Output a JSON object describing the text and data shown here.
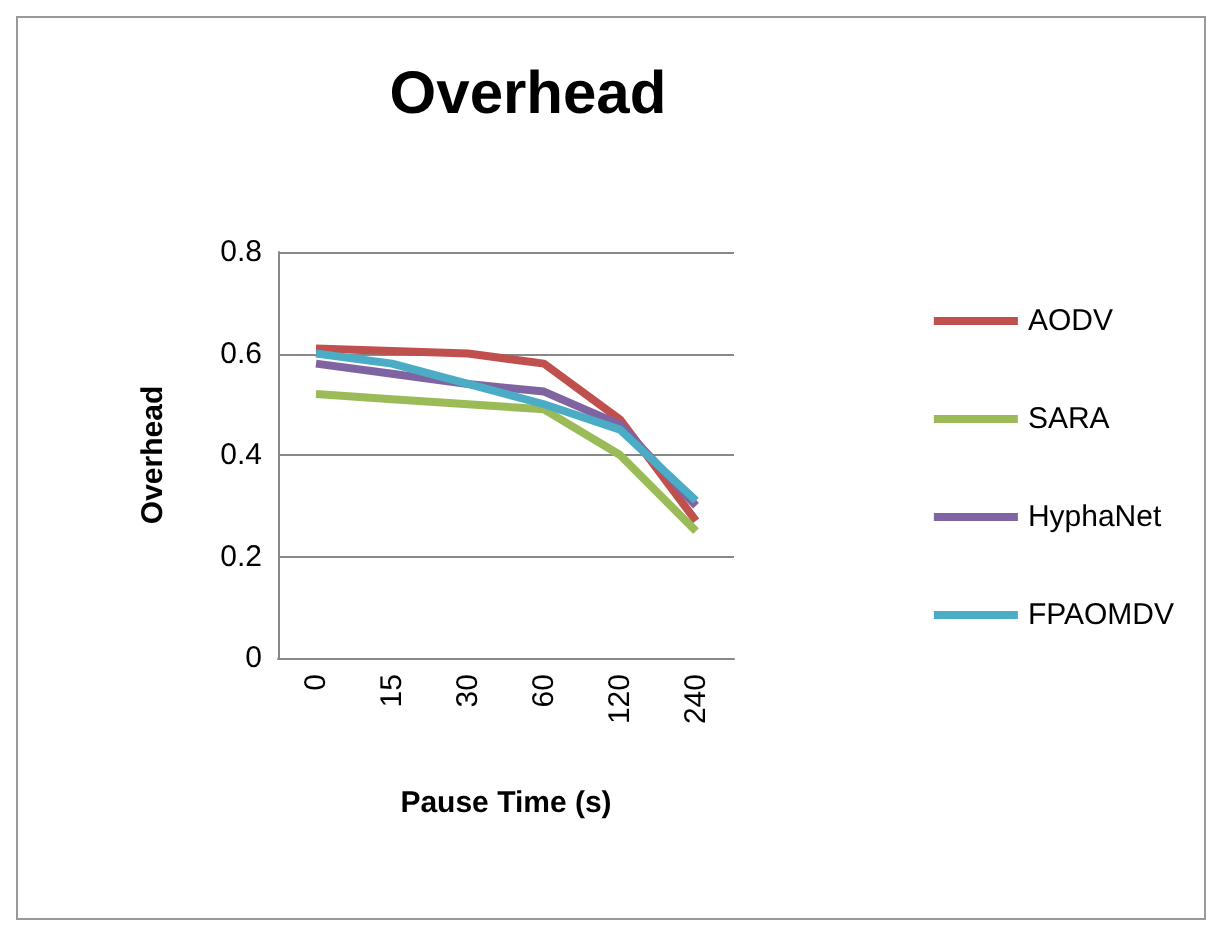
{
  "chart_data": {
    "type": "line",
    "title": "Overhead",
    "xlabel": "Pause Time (s)",
    "ylabel": "Overhead",
    "categories": [
      "0",
      "15",
      "30",
      "60",
      "120",
      "240"
    ],
    "series": [
      {
        "name": "AODV",
        "color": "#c0504d",
        "values": [
          0.61,
          0.605,
          0.6,
          0.58,
          0.47,
          0.27
        ]
      },
      {
        "name": "SARA",
        "color": "#9bbb59",
        "values": [
          0.52,
          0.51,
          0.5,
          0.49,
          0.4,
          0.25
        ]
      },
      {
        "name": "HyphaNet",
        "color": "#8064a2",
        "values": [
          0.58,
          0.56,
          0.54,
          0.525,
          0.46,
          0.3
        ]
      },
      {
        "name": "FPAOMDV",
        "color": "#4bacc6",
        "values": [
          0.6,
          0.58,
          0.54,
          0.5,
          0.45,
          0.31
        ]
      }
    ],
    "ylim": [
      0,
      0.8
    ],
    "yticks": [
      0,
      0.2,
      0.4,
      0.6,
      0.8
    ],
    "grid": "y",
    "legend": "right",
    "marker": "none",
    "line_style": "solid"
  }
}
